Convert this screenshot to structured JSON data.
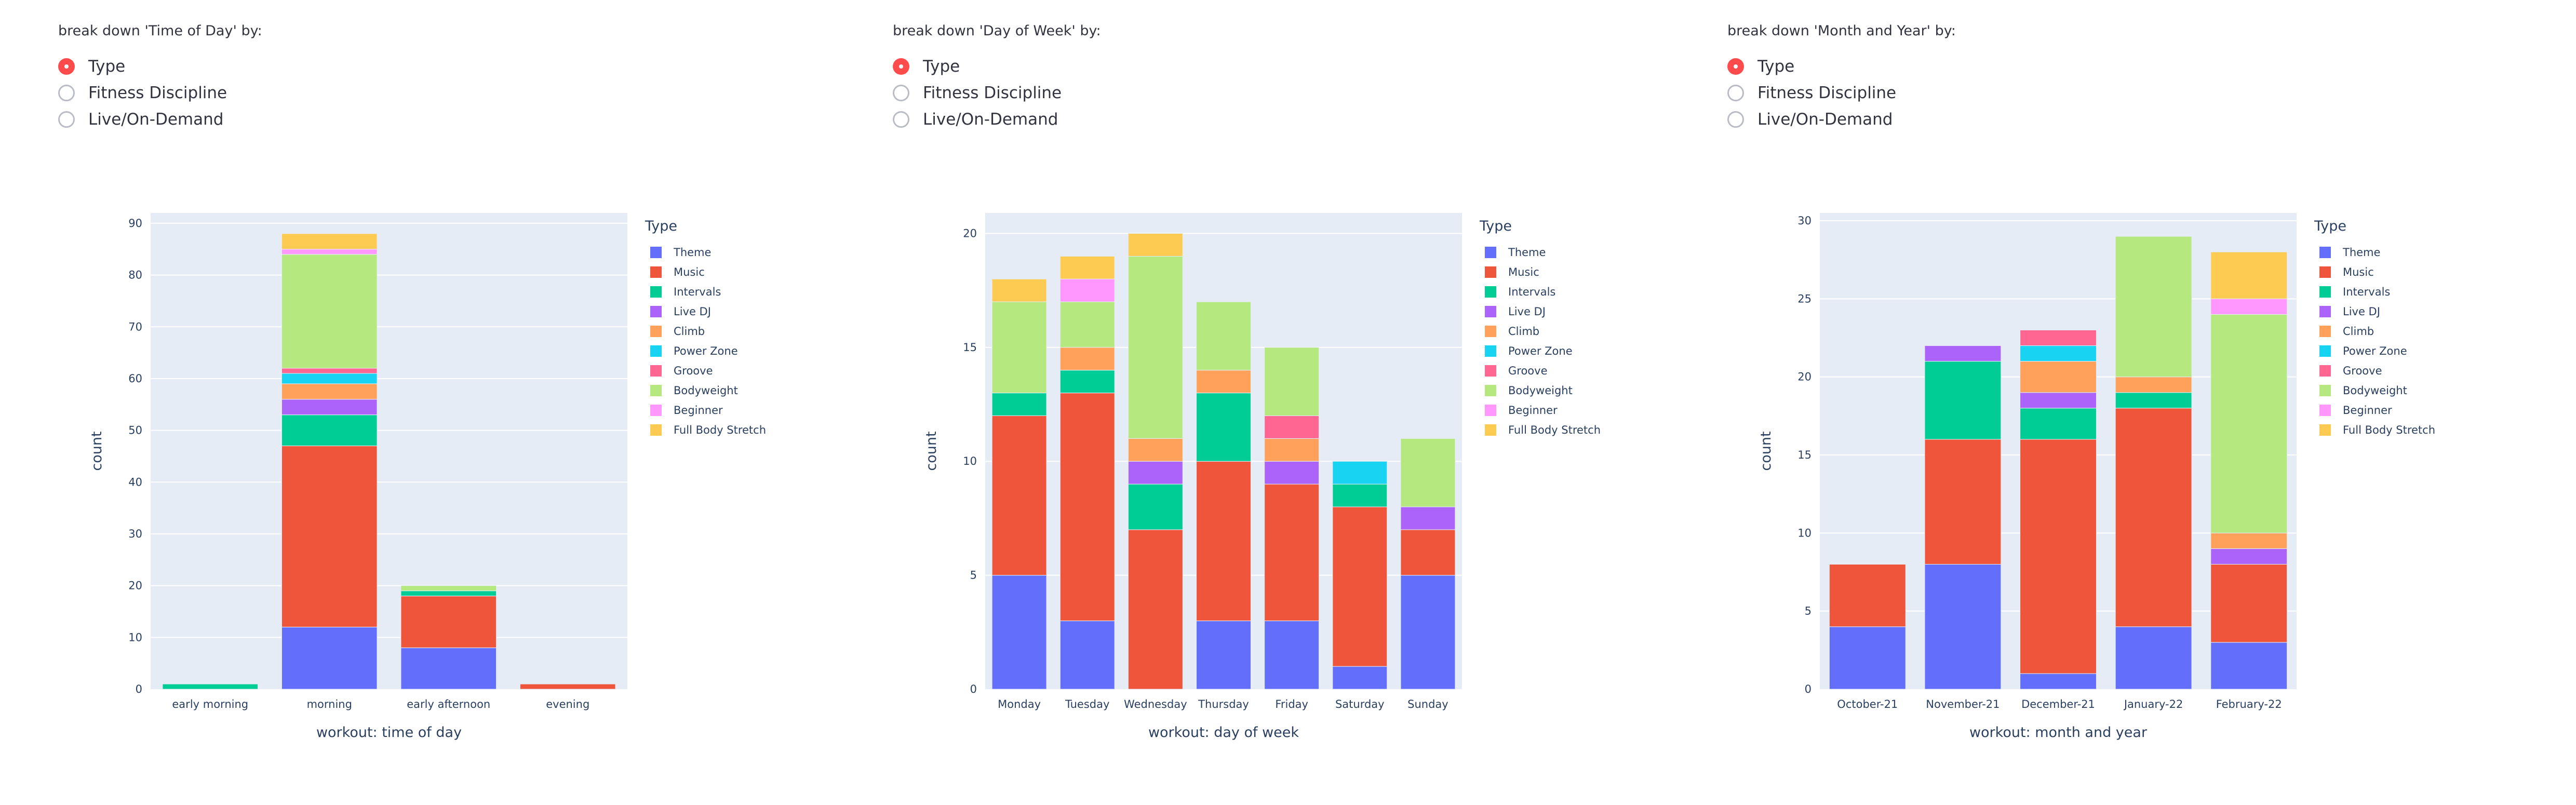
{
  "radio_options": [
    "Type",
    "Fitness Discipline",
    "Live/On-Demand"
  ],
  "legend_title": "Type",
  "types": [
    "Theme",
    "Music",
    "Intervals",
    "Live DJ",
    "Climb",
    "Power Zone",
    "Groove",
    "Bodyweight",
    "Beginner",
    "Full Body Stretch"
  ],
  "colors": {
    "Theme": "#636efa",
    "Music": "#ef553b",
    "Intervals": "#00cc96",
    "Live DJ": "#ab63fa",
    "Climb": "#ffa15a",
    "Power Zone": "#19d3f3",
    "Groove": "#ff6692",
    "Bodyweight": "#b6e880",
    "Beginner": "#ff97ff",
    "Full Body Stretch": "#fecb52"
  },
  "panels": [
    {
      "control_label": "break down 'Time of Day' by:",
      "selected": 0,
      "chart_data": {
        "type": "bar",
        "stacked": true,
        "categories": [
          "early morning",
          "morning",
          "early afternoon",
          "evening"
        ],
        "series": [
          {
            "name": "Theme",
            "values": [
              0,
              12,
              8,
              0
            ]
          },
          {
            "name": "Music",
            "values": [
              0,
              35,
              10,
              1
            ]
          },
          {
            "name": "Intervals",
            "values": [
              1,
              6,
              1,
              0
            ]
          },
          {
            "name": "Live DJ",
            "values": [
              0,
              3,
              0,
              0
            ]
          },
          {
            "name": "Climb",
            "values": [
              0,
              3,
              0,
              0
            ]
          },
          {
            "name": "Power Zone",
            "values": [
              0,
              2,
              0,
              0
            ]
          },
          {
            "name": "Groove",
            "values": [
              0,
              1,
              0,
              0
            ]
          },
          {
            "name": "Bodyweight",
            "values": [
              0,
              22,
              1,
              0
            ]
          },
          {
            "name": "Beginner",
            "values": [
              0,
              1,
              0,
              0
            ]
          },
          {
            "name": "Full Body Stretch",
            "values": [
              0,
              3,
              0,
              0
            ]
          }
        ],
        "xlabel": "workout: time of day",
        "ylabel": "count",
        "ylim": [
          0,
          92
        ],
        "yticks": [
          0,
          10,
          20,
          30,
          40,
          50,
          60,
          70,
          80,
          90
        ],
        "grid": true,
        "legend": "right"
      }
    },
    {
      "control_label": "break down 'Day of Week' by:",
      "selected": 0,
      "chart_data": {
        "type": "bar",
        "stacked": true,
        "categories": [
          "Monday",
          "Tuesday",
          "Wednesday",
          "Thursday",
          "Friday",
          "Saturday",
          "Sunday"
        ],
        "series": [
          {
            "name": "Theme",
            "values": [
              5,
              3,
              0,
              3,
              3,
              1,
              5
            ]
          },
          {
            "name": "Music",
            "values": [
              7,
              10,
              7,
              7,
              6,
              7,
              2
            ]
          },
          {
            "name": "Intervals",
            "values": [
              1,
              1,
              2,
              3,
              0,
              1,
              0
            ]
          },
          {
            "name": "Live DJ",
            "values": [
              0,
              0,
              1,
              0,
              1,
              0,
              1
            ]
          },
          {
            "name": "Climb",
            "values": [
              0,
              1,
              1,
              1,
              1,
              0,
              0
            ]
          },
          {
            "name": "Power Zone",
            "values": [
              0,
              0,
              0,
              0,
              0,
              1,
              0
            ]
          },
          {
            "name": "Groove",
            "values": [
              0,
              0,
              0,
              0,
              1,
              0,
              0
            ]
          },
          {
            "name": "Bodyweight",
            "values": [
              4,
              2,
              8,
              3,
              3,
              0,
              3
            ]
          },
          {
            "name": "Beginner",
            "values": [
              0,
              1,
              0,
              0,
              0,
              0,
              0
            ]
          },
          {
            "name": "Full Body Stretch",
            "values": [
              1,
              1,
              1,
              0,
              0,
              0,
              0
            ]
          }
        ],
        "xlabel": "workout: day of week",
        "ylabel": "count",
        "ylim": [
          0,
          20.9
        ],
        "yticks": [
          0,
          5,
          10,
          15,
          20
        ],
        "grid": true,
        "legend": "right"
      }
    },
    {
      "control_label": "break down 'Month and Year' by:",
      "selected": 0,
      "chart_data": {
        "type": "bar",
        "stacked": true,
        "categories": [
          "October-21",
          "November-21",
          "December-21",
          "January-22",
          "February-22"
        ],
        "series": [
          {
            "name": "Theme",
            "values": [
              4,
              8,
              1,
              4,
              3
            ]
          },
          {
            "name": "Music",
            "values": [
              4,
              8,
              15,
              14,
              5
            ]
          },
          {
            "name": "Intervals",
            "values": [
              0,
              5,
              2,
              1,
              0
            ]
          },
          {
            "name": "Live DJ",
            "values": [
              0,
              1,
              1,
              0,
              1
            ]
          },
          {
            "name": "Climb",
            "values": [
              0,
              0,
              2,
              1,
              1
            ]
          },
          {
            "name": "Power Zone",
            "values": [
              0,
              0,
              1,
              0,
              0
            ]
          },
          {
            "name": "Groove",
            "values": [
              0,
              0,
              1,
              0,
              0
            ]
          },
          {
            "name": "Bodyweight",
            "values": [
              0,
              0,
              0,
              9,
              14
            ]
          },
          {
            "name": "Beginner",
            "values": [
              0,
              0,
              0,
              0,
              1
            ]
          },
          {
            "name": "Full Body Stretch",
            "values": [
              0,
              0,
              0,
              0,
              3
            ]
          }
        ],
        "xlabel": "workout: month and year",
        "ylabel": "count",
        "ylim": [
          0,
          30.5
        ],
        "yticks": [
          0,
          5,
          10,
          15,
          20,
          25,
          30
        ],
        "grid": true,
        "legend": "right"
      }
    }
  ]
}
